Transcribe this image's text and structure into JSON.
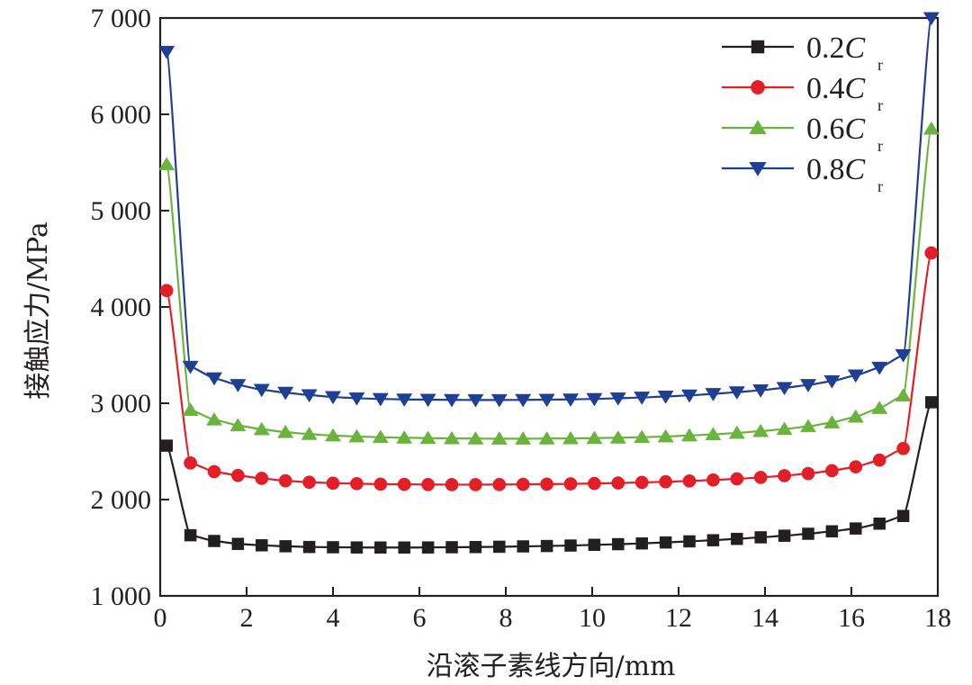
{
  "chart_data": {
    "type": "line",
    "title": "",
    "xlabel": "沿滚子素线方向/mm",
    "ylabel": "接触应力/MPa",
    "xlim": [
      0,
      18
    ],
    "ylim": [
      1000,
      7000
    ],
    "x_ticks": [
      0,
      2,
      4,
      6,
      8,
      10,
      12,
      14,
      16,
      18
    ],
    "x_tick_labels": [
      "0",
      "2",
      "4",
      "6",
      "8",
      "10",
      "12",
      "14",
      "16",
      "18"
    ],
    "y_ticks": [
      1000,
      2000,
      3000,
      4000,
      5000,
      6000,
      7000
    ],
    "y_tick_labels": [
      "1 000",
      "2 000",
      "3 000",
      "4 000",
      "5 000",
      "6 000",
      "7 000"
    ],
    "legend_position": "top-right",
    "x": [
      0.15,
      0.7,
      1.25,
      1.8,
      2.35,
      2.9,
      3.45,
      4.0,
      4.55,
      5.1,
      5.65,
      6.2,
      6.75,
      7.3,
      7.85,
      8.4,
      8.95,
      9.5,
      10.05,
      10.6,
      11.15,
      11.7,
      12.25,
      12.8,
      13.35,
      13.9,
      14.45,
      15.0,
      15.55,
      16.1,
      16.65,
      17.2,
      17.85
    ],
    "series": [
      {
        "name": "0.2C",
        "sub": "r",
        "color": "#231f20",
        "marker": "square",
        "values": [
          2560,
          1630,
          1570,
          1540,
          1525,
          1515,
          1508,
          1505,
          1503,
          1502,
          1502,
          1503,
          1505,
          1507,
          1510,
          1514,
          1518,
          1523,
          1530,
          1537,
          1545,
          1555,
          1566,
          1578,
          1592,
          1608,
          1625,
          1645,
          1670,
          1700,
          1750,
          1830,
          3010
        ]
      },
      {
        "name": "0.4C",
        "sub": "r",
        "color": "#e41e26",
        "marker": "circle",
        "values": [
          4170,
          2380,
          2290,
          2250,
          2220,
          2195,
          2180,
          2170,
          2165,
          2160,
          2158,
          2156,
          2155,
          2155,
          2156,
          2158,
          2160,
          2163,
          2167,
          2172,
          2178,
          2185,
          2193,
          2203,
          2215,
          2230,
          2248,
          2270,
          2300,
          2340,
          2410,
          2530,
          4560
        ]
      },
      {
        "name": "0.6C",
        "sub": "r",
        "color": "#6ab43e",
        "marker": "triangle-up",
        "values": [
          5480,
          2930,
          2830,
          2770,
          2730,
          2700,
          2680,
          2665,
          2655,
          2648,
          2642,
          2638,
          2635,
          2633,
          2632,
          2632,
          2633,
          2635,
          2638,
          2642,
          2648,
          2655,
          2665,
          2677,
          2692,
          2710,
          2732,
          2760,
          2800,
          2860,
          2950,
          3080,
          5850
        ]
      },
      {
        "name": "0.8C",
        "sub": "r",
        "color": "#1f3f95",
        "marker": "triangle-down",
        "values": [
          6650,
          3380,
          3260,
          3190,
          3140,
          3110,
          3085,
          3065,
          3052,
          3045,
          3040,
          3037,
          3035,
          3034,
          3034,
          3035,
          3037,
          3040,
          3045,
          3052,
          3060,
          3070,
          3082,
          3097,
          3115,
          3135,
          3160,
          3190,
          3230,
          3290,
          3370,
          3500,
          7000
        ]
      }
    ]
  }
}
